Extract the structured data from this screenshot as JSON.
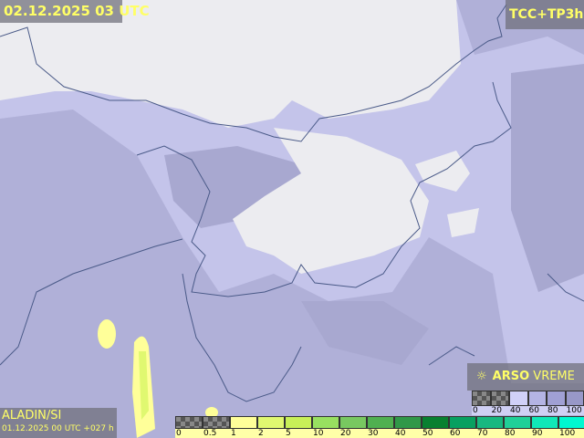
{
  "header": {
    "valid_time": "02.12.2025 03 UTC",
    "product": "TCC+TP3h"
  },
  "model": {
    "name": "ALADIN/SI",
    "run": "01.12.2025 00 UTC +027 h"
  },
  "logo": {
    "icon": "sun-cloud-icon",
    "brand": "ARSO",
    "suffix": "VREME"
  },
  "precip_legend": {
    "labels": [
      "0",
      "0.5",
      "1",
      "2",
      "5",
      "10",
      "20",
      "30",
      "40",
      "50",
      "60",
      "70",
      "80",
      "90",
      "100"
    ],
    "colors": [
      "checker",
      "checker",
      "#ffff99",
      "#e0f870",
      "#c8f058",
      "#98e060",
      "#78c860",
      "#50b050",
      "#309848",
      "#088030",
      "#08a060",
      "#18b880",
      "#20d098",
      "#10e8b8",
      "#00f8d0"
    ]
  },
  "cloud_legend": {
    "labels": [
      "0",
      "20",
      "40",
      "60",
      "80",
      "100"
    ],
    "colors": [
      "checker",
      "checker",
      "#d0d0f8",
      "#b4b4e4",
      "#a0a0d4",
      "#9898c8"
    ]
  },
  "map_colors": {
    "sea_cloud": "#b0b0d8",
    "clear_land": "#eeeef2",
    "light_cloud": "#c8c8ee",
    "dense_cloud": "#a4a4cc",
    "precip": "#ffff99",
    "border": "#4a5a88"
  }
}
